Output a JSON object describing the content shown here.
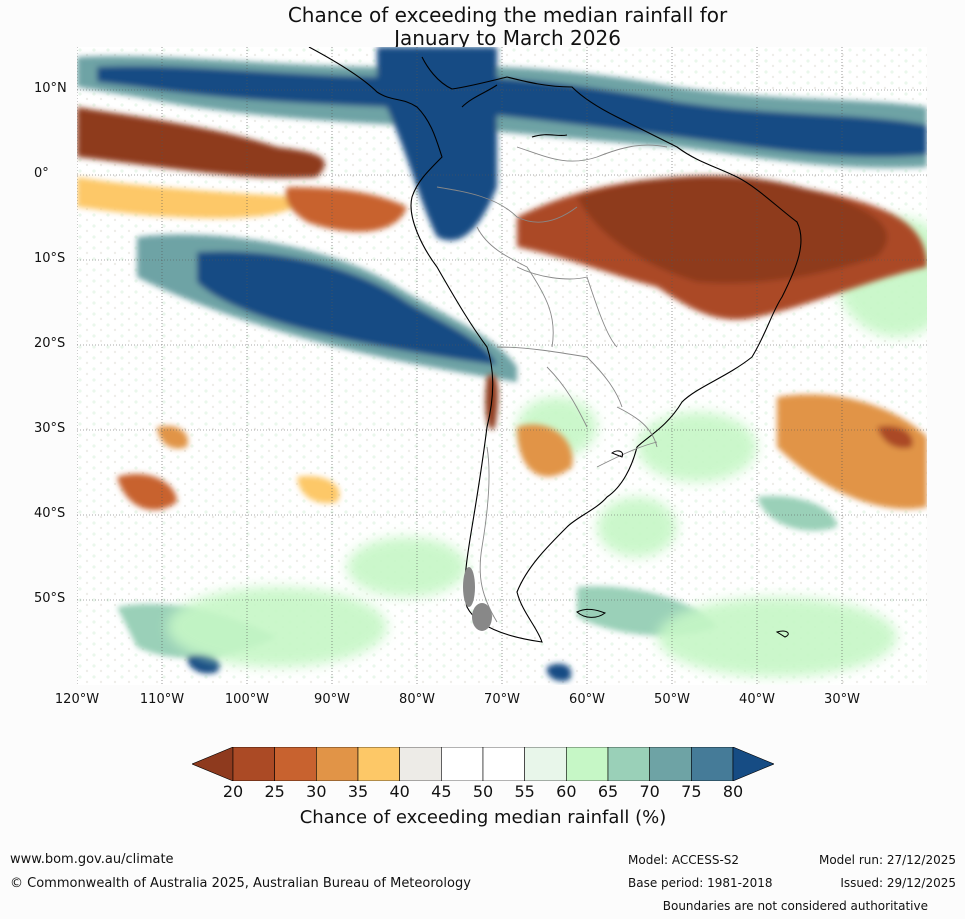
{
  "title": {
    "line1": "Chance of exceeding the median rainfall for",
    "line2": "January to March 2026"
  },
  "map": {
    "lat_labels": [
      "10°N",
      "0°",
      "10°S",
      "20°S",
      "30°S",
      "40°S",
      "50°S"
    ],
    "lon_labels": [
      "120°W",
      "110°W",
      "100°W",
      "90°W",
      "80°W",
      "70°W",
      "60°W",
      "50°W",
      "40°W",
      "30°W"
    ],
    "lat_range": [
      -60,
      15
    ],
    "lon_range": [
      -120,
      -20
    ]
  },
  "colorbar": {
    "ticks": [
      "20",
      "25",
      "30",
      "35",
      "40",
      "45",
      "50",
      "55",
      "60",
      "65",
      "70",
      "75",
      "80"
    ],
    "label": "Chance of exceeding median rainfall (%)",
    "colors": [
      "#8e3a1e",
      "#ab4a25",
      "#c8622f",
      "#e19447",
      "#fdc867",
      "#edebe7",
      "#ffffff",
      "#ffffff",
      "#e8f6ea",
      "#c6f7c6",
      "#9ad0b8",
      "#6ea3a5",
      "#457b98",
      "#164c84"
    ]
  },
  "footer": {
    "website": "www.bom.gov.au/climate",
    "copyright": "© Commonwealth of Australia 2025, Australian Bureau of Meteorology",
    "model": "Model: ACCESS-S2",
    "base_period": "Base period: 1981-2018",
    "model_run": "Model run: 27/12/2025",
    "issued": "Issued: 29/12/2025",
    "boundaries": "Boundaries are not considered authoritative"
  }
}
